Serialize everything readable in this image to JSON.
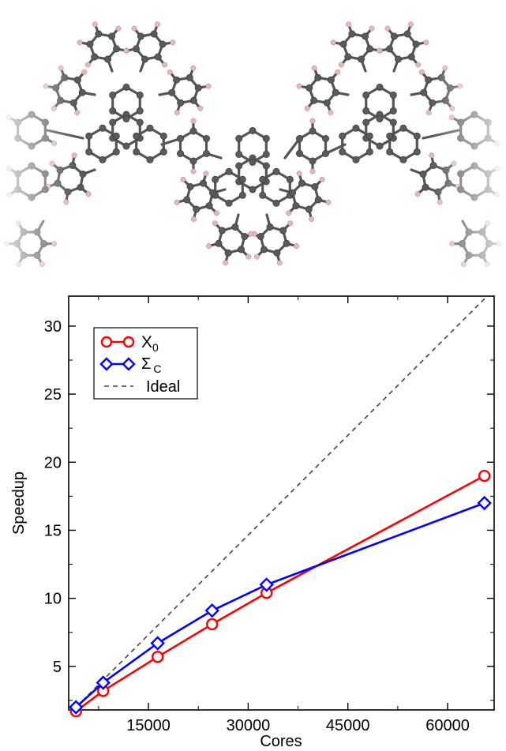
{
  "molecule": {
    "atom_color_carbon": "#5a5a5a",
    "atom_color_hydrogen": "#e6b8b8",
    "bond_color": "#555555"
  },
  "chart_data": {
    "type": "line",
    "xlabel": "Cores",
    "ylabel": "Speedup",
    "xlim": [
      3000,
      67000
    ],
    "ylim": [
      1.8,
      32.2
    ],
    "xticks": [
      15000,
      30000,
      45000,
      60000
    ],
    "yticks": [
      5,
      10,
      15,
      20,
      25,
      30
    ],
    "grid": false,
    "legend_placement": "top-left",
    "series": [
      {
        "name": "X",
        "subscript": "0",
        "color": "#ff0000",
        "marker": "circle",
        "x": [
          4096,
          8192,
          16384,
          24576,
          32768,
          65536
        ],
        "y": [
          1.7,
          3.2,
          5.7,
          8.1,
          10.4,
          19.0
        ]
      },
      {
        "name": "Σ",
        "subscript": "C",
        "color": "#0000ff",
        "marker": "diamond",
        "x": [
          4096,
          8192,
          16384,
          24576,
          32768,
          65536
        ],
        "y": [
          2.0,
          3.8,
          6.7,
          9.1,
          11.0,
          17.0
        ]
      },
      {
        "name": "Ideal",
        "color": "#444444",
        "style": "dashed",
        "x": [
          4096,
          65536
        ],
        "y": [
          2.0,
          32.0
        ]
      }
    ]
  }
}
